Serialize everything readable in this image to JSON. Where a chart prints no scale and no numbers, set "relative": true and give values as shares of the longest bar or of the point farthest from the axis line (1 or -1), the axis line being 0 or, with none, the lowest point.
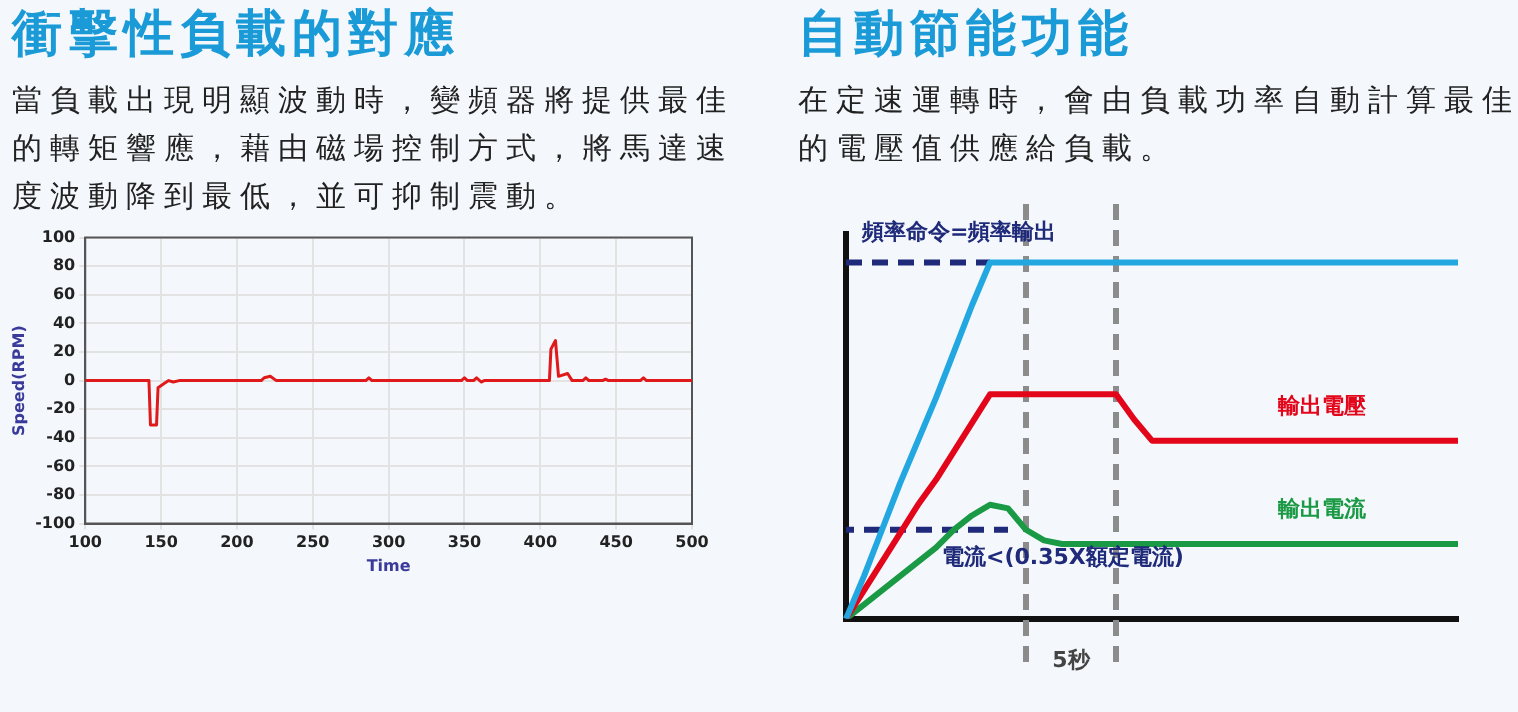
{
  "chart_data": [
    {
      "type": "line",
      "title": "衝擊性負載的對應",
      "subtitle": "當負載出現明顯波動時，變頻器將提供最佳的轉矩響應，藉由磁場控制方式，將馬達速度波動降到最低，並可抑制震動。",
      "xlabel": "Time",
      "ylabel": "Speed(RPM)",
      "x": [
        100,
        142,
        143,
        147,
        148,
        152,
        155,
        158,
        162,
        216,
        218,
        222,
        226,
        285,
        287,
        289,
        348,
        350,
        352,
        356,
        358,
        361,
        363,
        406,
        407,
        410,
        412,
        418,
        421,
        428,
        430,
        432,
        441,
        443,
        445,
        466,
        468,
        470,
        500
      ],
      "series": [
        {
          "color": "#e01a1a",
          "values": [
            0,
            0,
            -31,
            -31,
            -5,
            -2,
            0,
            -1,
            0,
            0,
            2,
            3,
            0,
            0,
            2,
            0,
            0,
            2,
            0,
            0,
            2,
            -1,
            0,
            0,
            22,
            28,
            3,
            5,
            0,
            0,
            2,
            0,
            0,
            1,
            0,
            0,
            2,
            0,
            0
          ]
        }
      ],
      "xlim": [
        100,
        500
      ],
      "xticks": [
        100,
        150,
        200,
        250,
        300,
        350,
        400,
        450,
        500
      ],
      "ylim": [
        -100,
        100
      ],
      "yticks": [
        -100,
        -80,
        -60,
        -40,
        -20,
        0,
        20,
        40,
        60,
        80,
        100
      ],
      "grid": true,
      "legend": false,
      "marker": "none"
    },
    {
      "type": "line",
      "title": "自動節能功能",
      "subtitle": "在定速運轉時，會由負載功率自動計算最佳的電壓值供應給負載。",
      "relative": true,
      "legend": false,
      "marker": "none",
      "categories": [
        null,
        null,
        null,
        null,
        null,
        null,
        null,
        null,
        null,
        null,
        null,
        null,
        null,
        null,
        null,
        null,
        null,
        null,
        null,
        null,
        null,
        null,
        null,
        null,
        null,
        null,
        null,
        null,
        null,
        null,
        null,
        null,
        null,
        null,
        null
      ],
      "series": [
        {
          "color": "#22a7e0",
          "values": [
            0,
            0.12,
            0.25,
            0.38,
            0.5,
            0.62,
            0.75,
            0.88,
            1,
            1,
            1,
            1,
            1,
            1,
            1,
            1,
            1,
            1,
            1,
            1,
            1,
            1,
            1,
            1,
            1,
            1,
            1,
            1,
            1,
            1,
            1,
            1,
            1,
            1,
            1
          ]
        },
        {
          "name": "頻率命令=頻率輸出",
          "color": "#1f2a7a",
          "line_style": "dashed",
          "values": [
            1,
            1,
            1,
            1,
            1,
            1,
            1,
            1,
            1,
            null,
            null,
            null,
            null,
            null,
            null,
            null,
            null,
            null,
            null,
            null,
            null,
            null,
            null,
            null,
            null,
            null,
            null,
            null,
            null,
            null,
            null,
            null,
            null,
            null,
            null
          ]
        },
        {
          "name": "輸出電壓",
          "color": "#e3061a",
          "values": [
            0,
            0.08,
            0.16,
            0.24,
            0.32,
            0.39,
            0.47,
            0.55,
            0.63,
            0.63,
            0.63,
            0.63,
            0.63,
            0.63,
            0.63,
            0.63,
            0.56,
            0.5,
            0.5,
            0.5,
            0.5,
            0.5,
            0.5,
            0.5,
            0.5,
            0.5,
            0.5,
            0.5,
            0.5,
            0.5,
            0.5,
            0.5,
            0.5,
            0.5,
            0.5
          ]
        },
        {
          "name": "輸出電流",
          "color": "#1a9a45",
          "values": [
            0,
            0.04,
            0.08,
            0.12,
            0.16,
            0.2,
            0.25,
            0.29,
            0.32,
            0.31,
            0.25,
            0.22,
            0.21,
            0.21,
            0.21,
            0.21,
            0.21,
            0.21,
            0.21,
            0.21,
            0.21,
            0.21,
            0.21,
            0.21,
            0.21,
            0.21,
            0.21,
            0.21,
            0.21,
            0.21,
            0.21,
            0.21,
            0.21,
            0.21,
            0.21
          ]
        },
        {
          "name": "電流<(0.35X額定電流)",
          "color": "#1f2a7a",
          "line_style": "dashed",
          "values": [
            0.25,
            0.25,
            0.25,
            0.25,
            0.25,
            0.25,
            0.25,
            0.25,
            0.25,
            0.25,
            null,
            null,
            null,
            null,
            null,
            null,
            null,
            null,
            null,
            null,
            null,
            null,
            null,
            null,
            null,
            null,
            null,
            null,
            null,
            null,
            null,
            null,
            null,
            null,
            null
          ]
        }
      ],
      "annotations": [
        "5秒"
      ]
    }
  ]
}
